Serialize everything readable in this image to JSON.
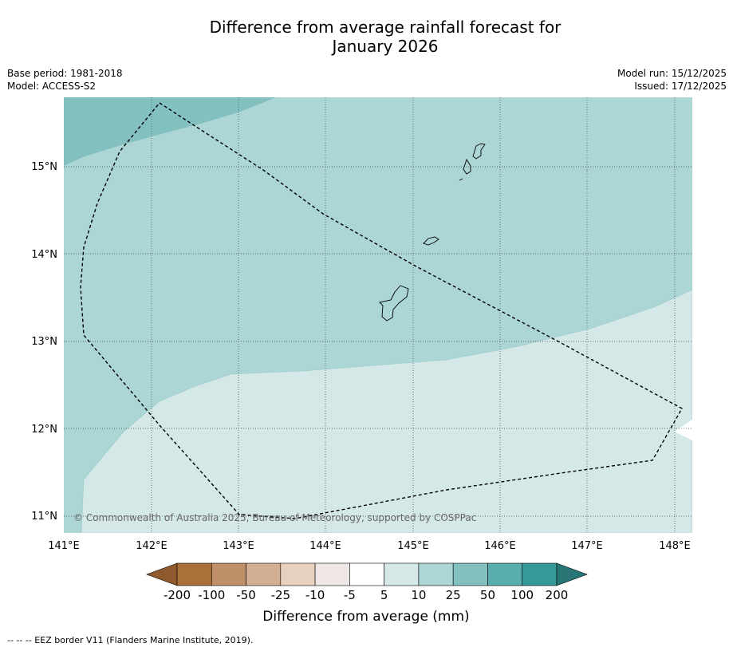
{
  "title": {
    "line1": "Difference from average rainfall forecast for",
    "line2": "January 2026"
  },
  "meta_left": {
    "base_period": "Base period: 1981-2018",
    "model": "Model: ACCESS-S2"
  },
  "meta_right": {
    "model_run": "Model run: 15/12/2025",
    "issued": "Issued: 17/12/2025"
  },
  "map": {
    "lat_labels": [
      "15°N",
      "14°N",
      "13°N",
      "12°N",
      "11°N"
    ],
    "lon_labels": [
      "141°E",
      "142°E",
      "143°E",
      "144°E",
      "145°E",
      "146°E",
      "147°E",
      "148°E"
    ],
    "copyright": "© Commonwealth of Australia 2025, Bureau of Meteorology, supported by COSPPac",
    "category_colors": {
      "5_to_10": "#d5e8e8",
      "10_to_25": "#acd5d5",
      "25_to_50": "#83c0c0",
      "background_low": "#ffffff"
    }
  },
  "colorbar": {
    "labels": [
      "-200",
      "-100",
      "-50",
      "-25",
      "-10",
      "-5",
      "5",
      "10",
      "25",
      "50",
      "100",
      "200"
    ],
    "colors": [
      "#a9703a",
      "#bf9068",
      "#d3b094",
      "#e6d0be",
      "#efe8e6",
      "#ffffff",
      "#d5e8e8",
      "#acd5d5",
      "#83c0c0",
      "#5aaead",
      "#36999a"
    ],
    "extend_low_color": "#905a2e",
    "extend_high_color": "#287575",
    "title": "Difference from average (mm)"
  },
  "footnote": "--  --  -- EEZ border V11 (Flanders Marine Institute, 2019)."
}
